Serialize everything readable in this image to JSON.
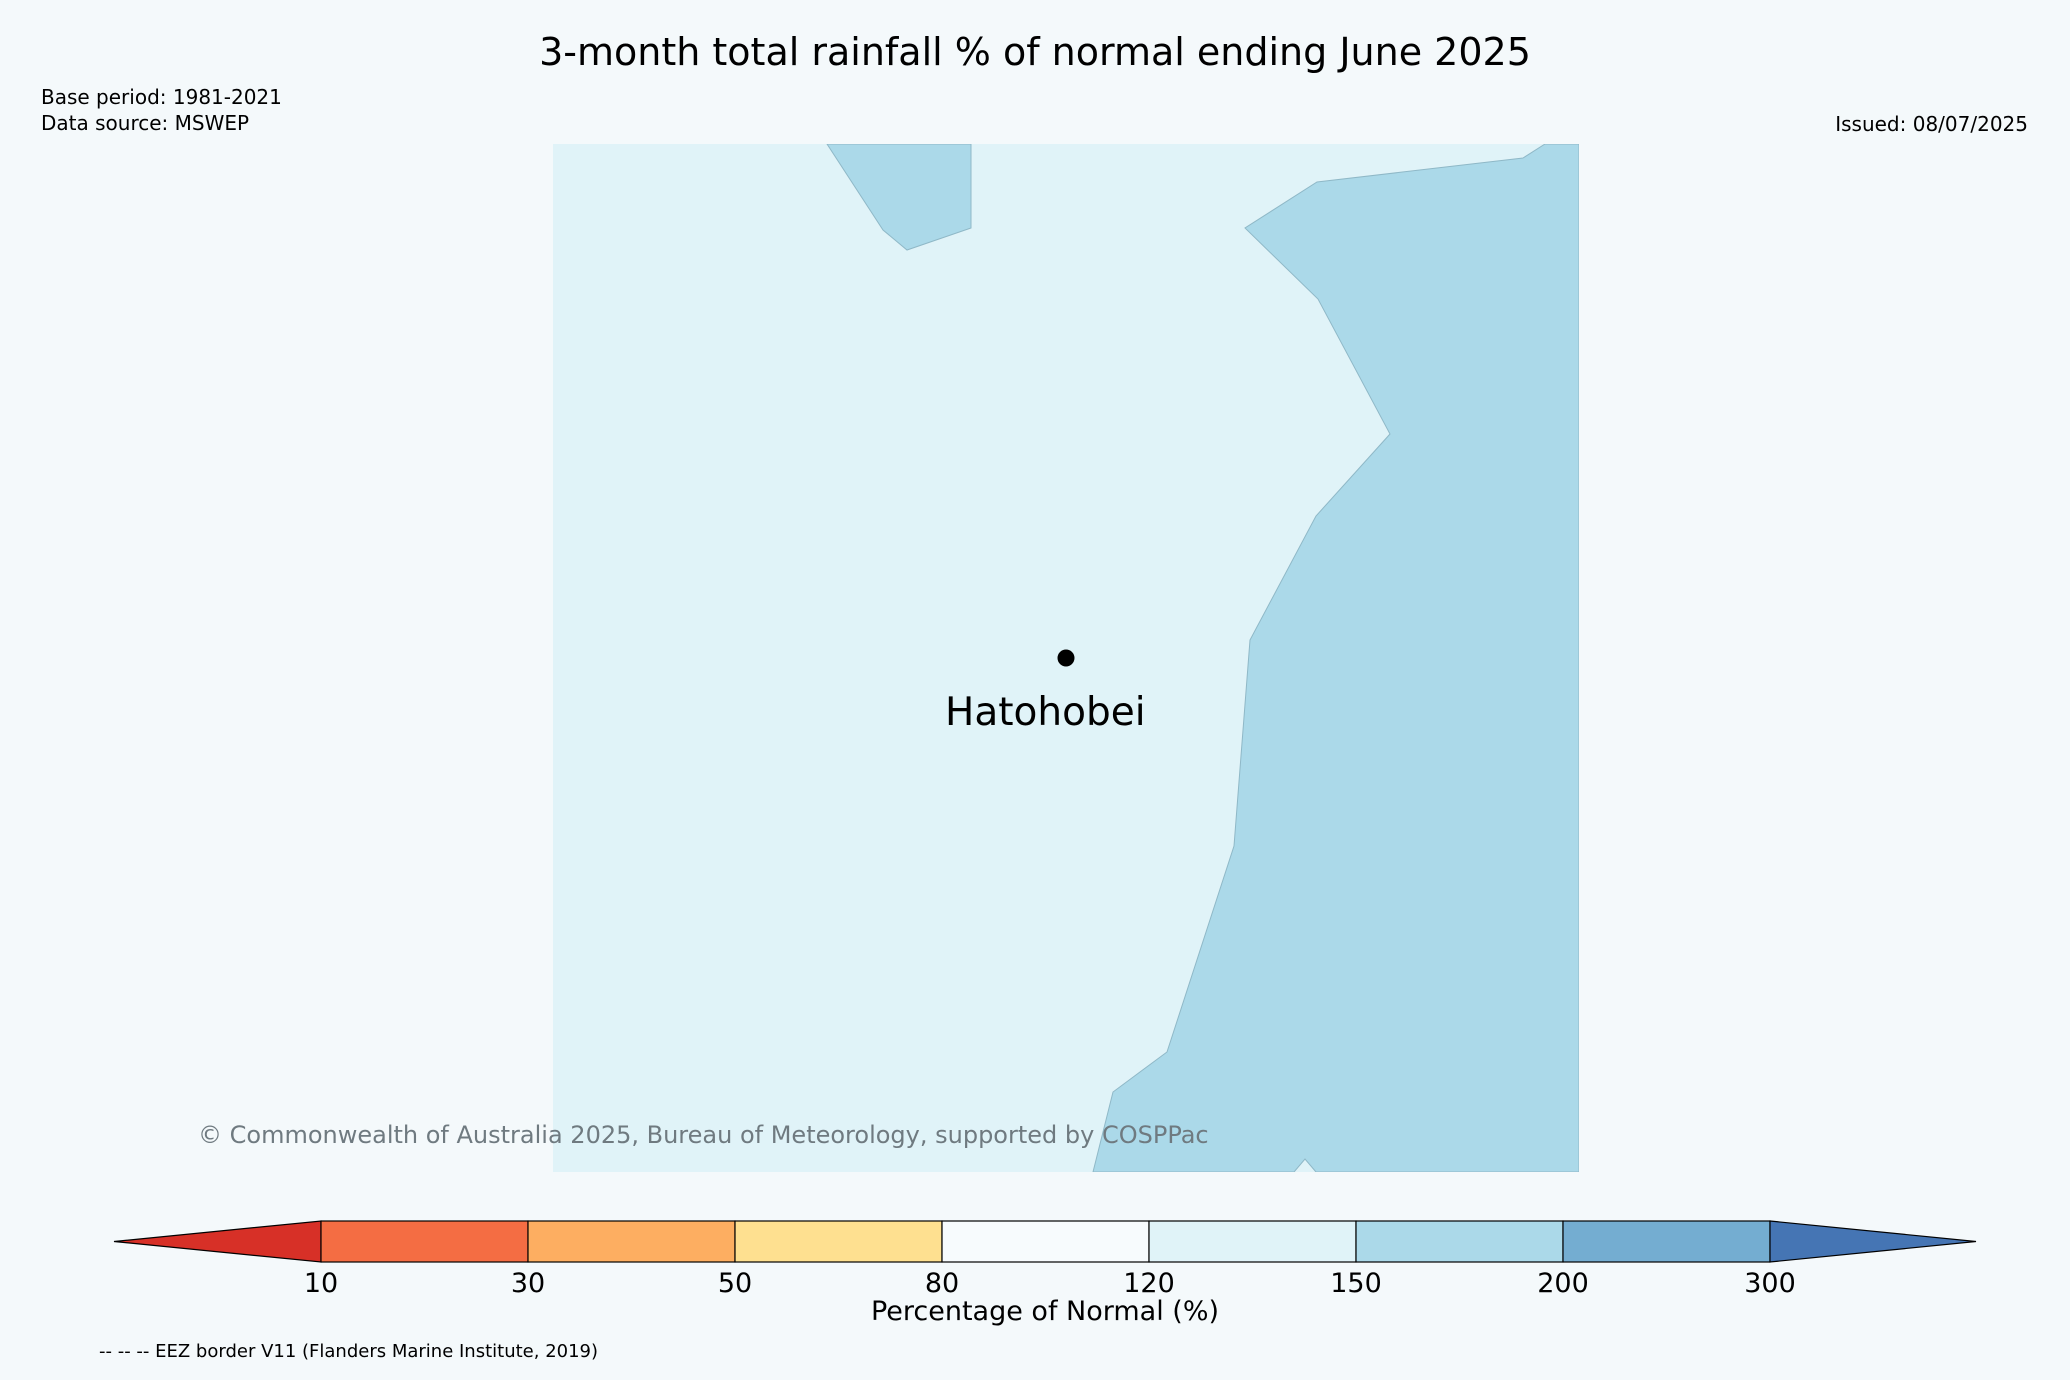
{
  "title": "3-month total rainfall % of normal ending June 2025",
  "meta": {
    "base_period": "Base period: 1981-2021",
    "data_source": "Data source: MSWEP",
    "issued": "Issued: 08/07/2025"
  },
  "map": {
    "place": "Hatohobei",
    "region_colors": {
      "120_150": "#e0f3f8",
      "150_200": "#abd9e9"
    }
  },
  "copyright": "© Commonwealth of Australia 2025, Bureau of Meteorology, supported by COSPPac",
  "colorbar": {
    "label": "Percentage of Normal (%)",
    "ticks": [
      "10",
      "30",
      "50",
      "80",
      "120",
      "150",
      "200",
      "300"
    ],
    "colors": [
      "#d73027",
      "#f46d43",
      "#fdae61",
      "#fee090",
      "#f7fbfd",
      "#e0f3f8",
      "#abd9e9",
      "#74add1",
      "#4575b4"
    ]
  },
  "eez_note": "-- -- -- EEZ border V11 (Flanders Marine Institute, 2019)"
}
